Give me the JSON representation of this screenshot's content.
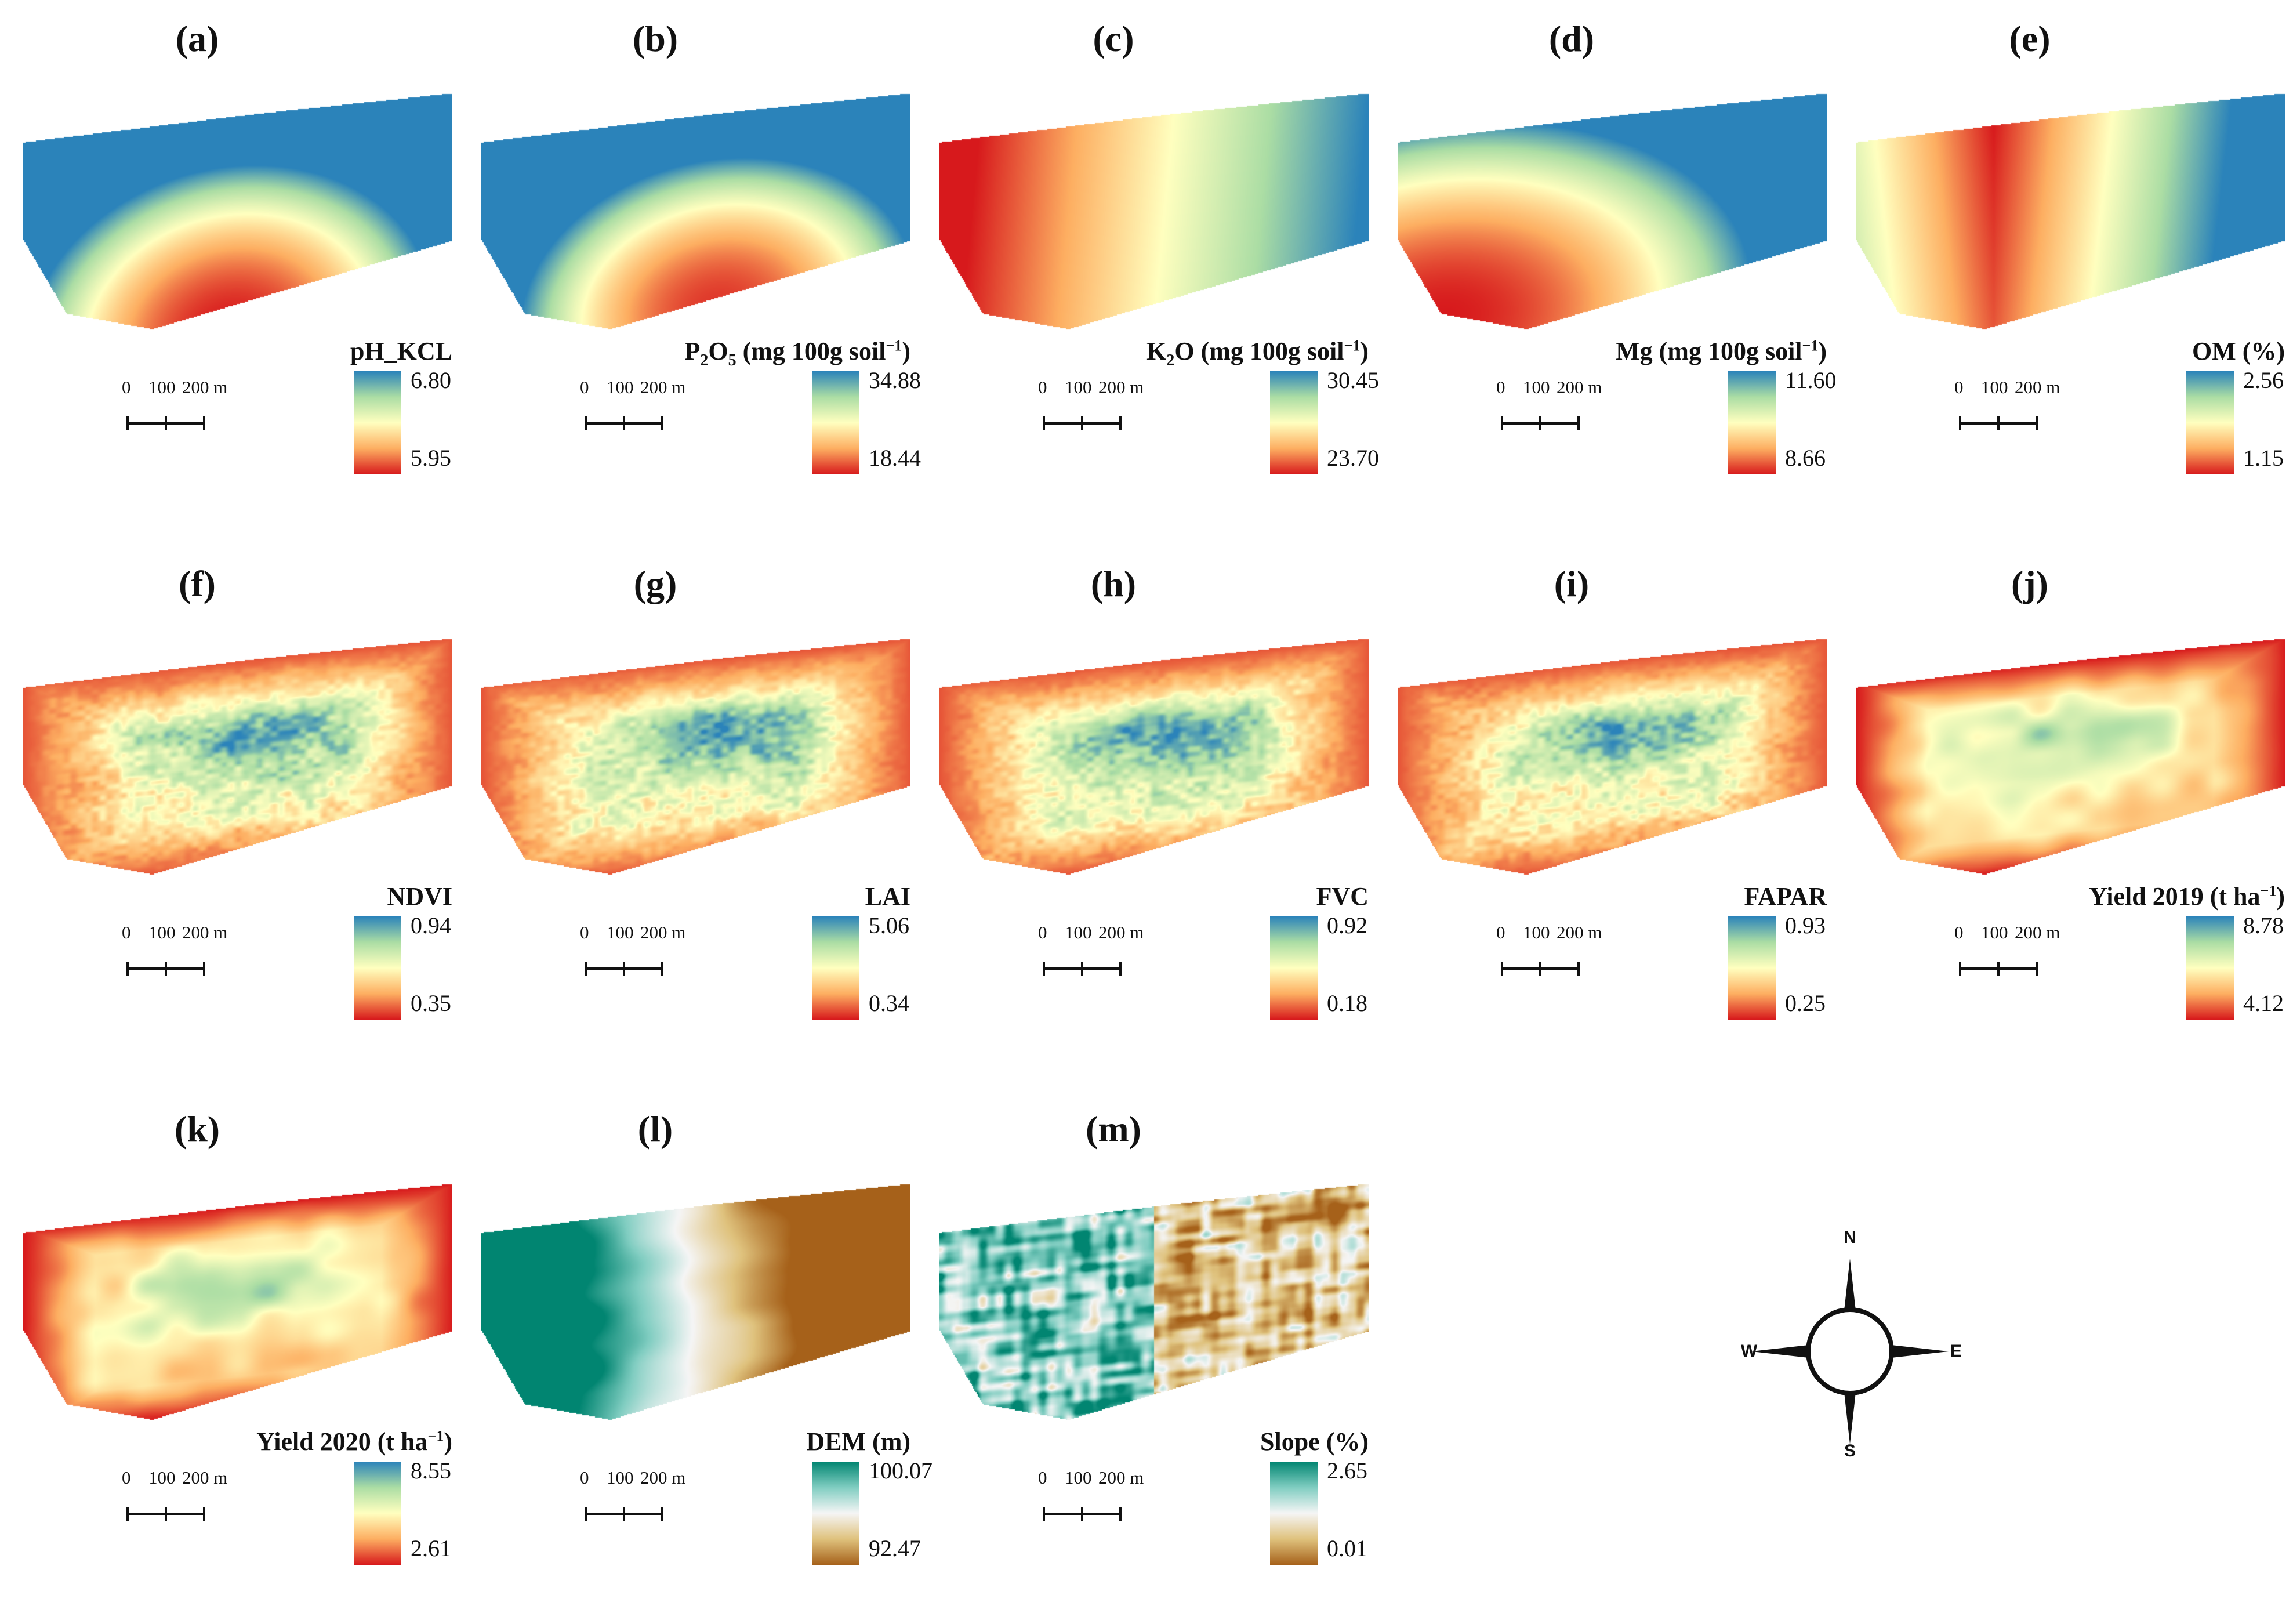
{
  "figure": {
    "panels": [
      {
        "id": "a",
        "label": "(a)",
        "variable": "pH_KCL",
        "max": "6.80",
        "min": "5.95",
        "ramp": "spectral",
        "pattern": "smooth"
      },
      {
        "id": "b",
        "label": "(b)",
        "variable": "P2O5 (mg 100g soil-1)",
        "title_pre": "P",
        "title_sub": "2",
        "title_mid": "O",
        "title_sub2": "5",
        "title_post": " (mg 100g soil",
        "title_sup": "−1",
        "title_end": ")",
        "max": "34.88",
        "min": "18.44",
        "ramp": "spectral",
        "pattern": "smooth"
      },
      {
        "id": "c",
        "label": "(c)",
        "variable": "K2O (mg 100g soil-1)",
        "title_pre": "K",
        "title_sub": "2",
        "title_mid": "O (mg 100g soil",
        "title_sup": "−1",
        "title_end": ")",
        "max": "30.45",
        "min": "23.70",
        "ramp": "spectral",
        "pattern": "smooth"
      },
      {
        "id": "d",
        "label": "(d)",
        "variable": "Mg (mg 100g soil-1)",
        "title_pre": "Mg (mg 100g soil",
        "title_sup": "−1",
        "title_end": ")",
        "max": "11.60",
        "min": "8.66",
        "ramp": "spectral",
        "pattern": "smooth"
      },
      {
        "id": "e",
        "label": "(e)",
        "variable": "OM (%)",
        "max": "2.56",
        "min": "1.15",
        "ramp": "spectral",
        "pattern": "smooth"
      },
      {
        "id": "f",
        "label": "(f)",
        "variable": "NDVI",
        "max": "0.94",
        "min": "0.35",
        "ramp": "spectral",
        "pattern": "noisy"
      },
      {
        "id": "g",
        "label": "(g)",
        "variable": "LAI",
        "max": "5.06",
        "min": "0.34",
        "ramp": "spectral",
        "pattern": "noisy"
      },
      {
        "id": "h",
        "label": "(h)",
        "variable": "FVC",
        "max": "0.92",
        "min": "0.18",
        "ramp": "spectral",
        "pattern": "noisy"
      },
      {
        "id": "i",
        "label": "(i)",
        "variable": "FAPAR",
        "max": "0.93",
        "min": "0.25",
        "ramp": "spectral",
        "pattern": "noisy"
      },
      {
        "id": "j",
        "label": "(j)",
        "variable": "Yield 2019 (t ha-1)",
        "title_pre": "Yield 2019 (t ha",
        "title_sup": "−1",
        "title_end": ")",
        "max": "8.78",
        "min": "4.12",
        "ramp": "spectral",
        "pattern": "yield"
      },
      {
        "id": "k",
        "label": "(k)",
        "variable": "Yield 2020 (t ha-1)",
        "title_pre": "Yield 2020 (t ha",
        "title_sup": "−1",
        "title_end": ")",
        "max": "8.55",
        "min": "2.61",
        "ramp": "spectral",
        "pattern": "yield"
      },
      {
        "id": "l",
        "label": "(l)",
        "variable": "DEM (m)",
        "max": "100.07",
        "min": "92.47",
        "ramp": "brbg",
        "pattern": "dem"
      },
      {
        "id": "m",
        "label": "(m)",
        "variable": "Slope (%)",
        "max": "2.65",
        "min": "0.01",
        "ramp": "brbg",
        "pattern": "slope"
      }
    ],
    "scale_bar": {
      "labels": [
        "0",
        "100",
        "200 m"
      ]
    },
    "compass": {
      "north": "N",
      "south": "S",
      "east": "E",
      "west": "W"
    },
    "colors": {
      "spectral": [
        "#d7191c",
        "#fdae61",
        "#ffffbf",
        "#abdda4",
        "#2b83ba"
      ],
      "brbg": [
        "#a6611a",
        "#dfc27d",
        "#f5f5f5",
        "#80cdc1",
        "#018571"
      ]
    }
  }
}
